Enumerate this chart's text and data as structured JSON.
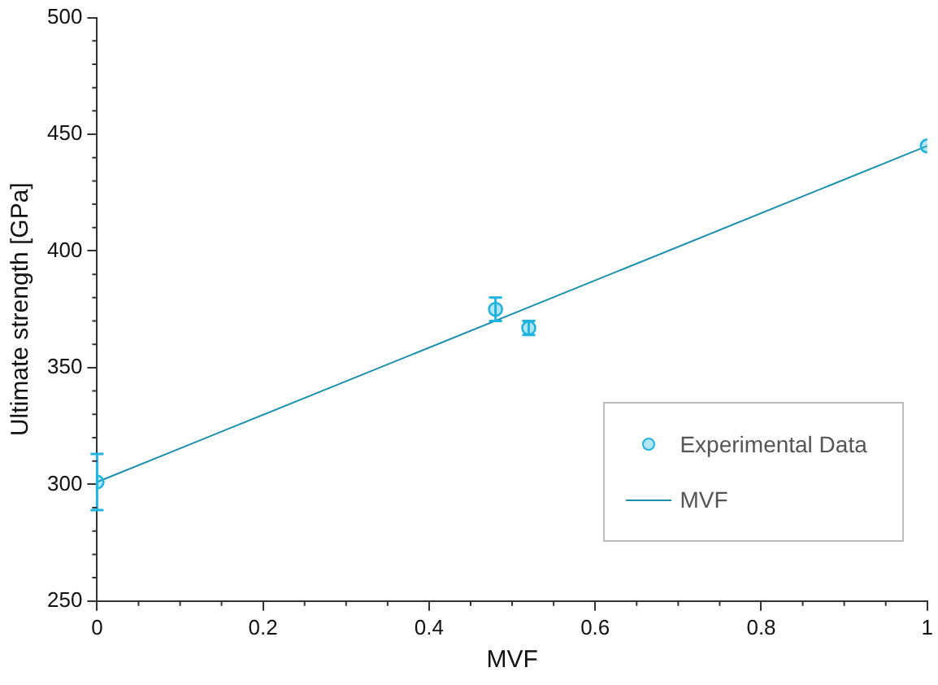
{
  "chart_data": {
    "type": "scatter",
    "xlabel": "MVF",
    "ylabel": "Ultimate strength [GPa]",
    "xlim": [
      0,
      1
    ],
    "xticks": [
      0,
      0.2,
      0.4,
      0.6,
      0.8,
      1
    ],
    "ylim": [
      250,
      500
    ],
    "yticks": [
      250,
      300,
      350,
      400,
      450,
      500
    ],
    "grid": false,
    "legend": "right",
    "marker": "circle",
    "series": [
      {
        "name": "Experimental Data",
        "color": "#1fb4e0",
        "x": [
          0,
          0.48,
          0.52,
          1
        ],
        "values": [
          301,
          375,
          367,
          445
        ],
        "errors": [
          12,
          5,
          3,
          null
        ]
      },
      {
        "name": "MVF",
        "type": "line",
        "color": "#1a8fae",
        "x": [
          0,
          1
        ],
        "values": [
          301,
          445
        ],
        "marker": "none",
        "line_style": "solid"
      }
    ]
  }
}
